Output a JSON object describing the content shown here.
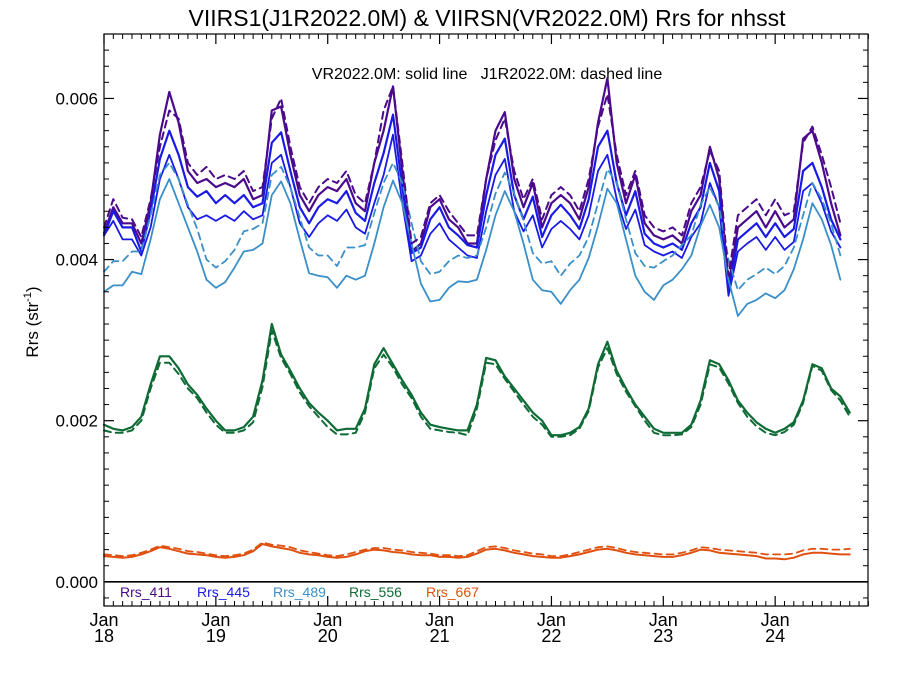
{
  "chart_data": {
    "type": "line",
    "title": "VIIRS1(J1R2022.0M) & VIIRSN(VR2022.0M)  Rrs for nhsst",
    "subtitle": "VR2022.0M: solid line   J1R2022.0M: dashed line",
    "ylabel": "Rrs (str",
    "ylabel_sup": "-1",
    "ylabel_close": ")",
    "xlim": [
      2018.0,
      2024.83
    ],
    "ylim": [
      -0.0003,
      0.0068
    ],
    "yticks": [
      "0.000",
      "0.002",
      "0.004",
      "0.006"
    ],
    "ytick_values": [
      0.0,
      0.002,
      0.004,
      0.006
    ],
    "xticks": [
      {
        "top": "Jan",
        "bottom": "18",
        "x": 2018.0
      },
      {
        "top": "Jan",
        "bottom": "19",
        "x": 2019.0
      },
      {
        "top": "Jan",
        "bottom": "20",
        "x": 2020.0
      },
      {
        "top": "Jan",
        "bottom": "21",
        "x": 2021.0
      },
      {
        "top": "Jan",
        "bottom": "22",
        "x": 2022.0
      },
      {
        "top": "Jan",
        "bottom": "23",
        "x": 2023.0
      },
      {
        "top": "Jan",
        "bottom": "24",
        "x": 2024.0
      }
    ],
    "x_step": 0.0833333,
    "legend": [
      {
        "name": "Rrs_411",
        "color": "#4b0a8c"
      },
      {
        "name": "Rrs_445",
        "color": "#1a1ae6"
      },
      {
        "name": "Rrs_489",
        "color": "#3a8fc8"
      },
      {
        "name": "Rrs_556",
        "color": "#0f6b35"
      },
      {
        "name": "Rrs_667",
        "color": "#e0500f"
      }
    ],
    "series": [
      {
        "name": "Rrs_411",
        "style": "solid",
        "color": "#4b0a8c",
        "width": 2.2,
        "values": [
          0.00433,
          0.00465,
          0.00445,
          0.00445,
          0.0042,
          0.0047,
          0.00555,
          0.00608,
          0.0057,
          0.0051,
          0.00495,
          0.005,
          0.0049,
          0.00495,
          0.0049,
          0.005,
          0.00475,
          0.0048,
          0.00585,
          0.0059,
          0.0053,
          0.0048,
          0.0046,
          0.0048,
          0.0049,
          0.00485,
          0.005,
          0.0047,
          0.0046,
          0.0052,
          0.0056,
          0.00615,
          0.0051,
          0.0041,
          0.0042,
          0.00465,
          0.00475,
          0.0045,
          0.0044,
          0.0042,
          0.0042,
          0.005,
          0.0056,
          0.00583,
          0.005,
          0.00465,
          0.00495,
          0.0044,
          0.0047,
          0.0048,
          0.0047,
          0.0045,
          0.0049,
          0.0057,
          0.00625,
          0.0052,
          0.0047,
          0.00505,
          0.00445,
          0.0043,
          0.00425,
          0.0043,
          0.0042,
          0.0046,
          0.0048,
          0.0054,
          0.005,
          0.00368,
          0.0044,
          0.0045,
          0.0046,
          0.0044,
          0.0046,
          0.0044,
          0.0045,
          0.0055,
          0.0056,
          0.0052,
          0.0047,
          0.0043
        ]
      },
      {
        "name": "Rrs_445",
        "style": "solid",
        "color": "#1a1ae6",
        "width": 2.2,
        "values": [
          0.0043,
          0.0046,
          0.0044,
          0.0044,
          0.0041,
          0.0046,
          0.00525,
          0.0056,
          0.0053,
          0.0049,
          0.00478,
          0.00485,
          0.0047,
          0.0048,
          0.0047,
          0.0048,
          0.00465,
          0.0047,
          0.00545,
          0.00558,
          0.0051,
          0.00465,
          0.00445,
          0.00465,
          0.00475,
          0.0047,
          0.00485,
          0.00458,
          0.00448,
          0.00495,
          0.00532,
          0.0058,
          0.0049,
          0.00408,
          0.00415,
          0.0045,
          0.00465,
          0.0044,
          0.0043,
          0.00418,
          0.00415,
          0.0048,
          0.0053,
          0.0055,
          0.0048,
          0.0045,
          0.00478,
          0.00428,
          0.00455,
          0.00468,
          0.00455,
          0.00438,
          0.00475,
          0.0054,
          0.0056,
          0.00495,
          0.00455,
          0.00485,
          0.00432,
          0.0042,
          0.00415,
          0.0042,
          0.00412,
          0.00445,
          0.00465,
          0.0052,
          0.00485,
          0.0036,
          0.00425,
          0.00435,
          0.00445,
          0.00428,
          0.00445,
          0.00428,
          0.00438,
          0.0051,
          0.0052,
          0.0049,
          0.0045,
          0.00425
        ]
      },
      {
        "name": "Rrs_445",
        "style": "solid",
        "color": "#1a1ae6",
        "width": 1.8,
        "values": [
          0.0043,
          0.00448,
          0.00425,
          0.00425,
          0.00405,
          0.0044,
          0.005,
          0.0053,
          0.005,
          0.00465,
          0.0045,
          0.00455,
          0.00448,
          0.00455,
          0.00448,
          0.0046,
          0.0045,
          0.00455,
          0.0052,
          0.0053,
          0.0049,
          0.00445,
          0.00428,
          0.00445,
          0.00455,
          0.00448,
          0.00462,
          0.0044,
          0.00432,
          0.0047,
          0.00505,
          0.00555,
          0.0047,
          0.00398,
          0.00405,
          0.00432,
          0.00445,
          0.00425,
          0.00415,
          0.00405,
          0.00402,
          0.0046,
          0.00505,
          0.00525,
          0.0046,
          0.00435,
          0.00455,
          0.00415,
          0.00438,
          0.00448,
          0.00438,
          0.00425,
          0.00455,
          0.0051,
          0.0053,
          0.00475,
          0.00438,
          0.00462,
          0.00418,
          0.0041,
          0.00405,
          0.0041,
          0.00402,
          0.00428,
          0.00445,
          0.00495,
          0.00465,
          0.00355,
          0.0041,
          0.0042,
          0.00428,
          0.00412,
          0.00428,
          0.00412,
          0.00422,
          0.00485,
          0.00495,
          0.0047,
          0.00435,
          0.00415
        ]
      },
      {
        "name": "Rrs_489",
        "style": "solid",
        "color": "#3a8fc8",
        "width": 1.8,
        "values": [
          0.0036,
          0.00368,
          0.00368,
          0.00385,
          0.00382,
          0.00425,
          0.00475,
          0.005,
          0.0047,
          0.0044,
          0.0041,
          0.00375,
          0.00365,
          0.00372,
          0.0039,
          0.0041,
          0.00412,
          0.0042,
          0.0048,
          0.00497,
          0.0047,
          0.00425,
          0.00383,
          0.0038,
          0.00378,
          0.00365,
          0.0038,
          0.00375,
          0.0038,
          0.0042,
          0.00465,
          0.00498,
          0.0047,
          0.0042,
          0.0037,
          0.00348,
          0.0035,
          0.00365,
          0.00373,
          0.00372,
          0.00375,
          0.00412,
          0.00455,
          0.00485,
          0.0046,
          0.0042,
          0.00375,
          0.00362,
          0.0036,
          0.00345,
          0.00362,
          0.00375,
          0.00402,
          0.00442,
          0.00488,
          0.0047,
          0.00425,
          0.0038,
          0.0036,
          0.0035,
          0.00368,
          0.00375,
          0.00388,
          0.00405,
          0.00442,
          0.00468,
          0.0044,
          0.00375,
          0.0033,
          0.00345,
          0.0035,
          0.00358,
          0.00352,
          0.00362,
          0.00388,
          0.00425,
          0.0047,
          0.0045,
          0.00418,
          0.00375
        ]
      },
      {
        "name": "Rrs_489",
        "style": "dashed",
        "color": "#3a8fc8",
        "width": 1.8,
        "values": [
          0.00385,
          0.00398,
          0.00398,
          0.0041,
          0.0041,
          0.00455,
          0.00505,
          0.0052,
          0.005,
          0.00468,
          0.00438,
          0.004,
          0.0039,
          0.00398,
          0.00412,
          0.00435,
          0.00438,
          0.00445,
          0.00505,
          0.00515,
          0.0049,
          0.00452,
          0.00415,
          0.00405,
          0.00405,
          0.00392,
          0.00415,
          0.00415,
          0.00418,
          0.00458,
          0.00495,
          0.0052,
          0.00495,
          0.00445,
          0.00398,
          0.00382,
          0.00385,
          0.00398,
          0.00405,
          0.00402,
          0.00405,
          0.0044,
          0.00482,
          0.00508,
          0.00482,
          0.00448,
          0.00408,
          0.00395,
          0.00398,
          0.0038,
          0.00395,
          0.00405,
          0.00428,
          0.0047,
          0.00512,
          0.00495,
          0.0045,
          0.00408,
          0.00392,
          0.0039,
          0.00398,
          0.00405,
          0.00418,
          0.0043,
          0.00468,
          0.0049,
          0.00465,
          0.004,
          0.00362,
          0.00375,
          0.00382,
          0.0039,
          0.00382,
          0.00392,
          0.00415,
          0.00455,
          0.00495,
          0.00475,
          0.00445,
          0.00405
        ]
      },
      {
        "name": "Rrs_411",
        "style": "dashed",
        "color": "#4b0a8c",
        "width": 2.0,
        "values": [
          0.0044,
          0.00475,
          0.00452,
          0.0045,
          0.00428,
          0.00475,
          0.0054,
          0.00585,
          0.00575,
          0.0052,
          0.00505,
          0.00515,
          0.005,
          0.00505,
          0.005,
          0.0051,
          0.00485,
          0.0049,
          0.00575,
          0.006,
          0.0054,
          0.0049,
          0.0047,
          0.0049,
          0.005,
          0.00495,
          0.0051,
          0.0048,
          0.0047,
          0.0052,
          0.00585,
          0.00615,
          0.0052,
          0.0042,
          0.00428,
          0.0047,
          0.0048,
          0.0046,
          0.00445,
          0.0043,
          0.0043,
          0.005,
          0.00548,
          0.00575,
          0.0051,
          0.00475,
          0.005,
          0.0045,
          0.0048,
          0.0049,
          0.0048,
          0.0046,
          0.005,
          0.00565,
          0.00605,
          0.0053,
          0.0048,
          0.0051,
          0.00455,
          0.0044,
          0.00435,
          0.0044,
          0.0043,
          0.0047,
          0.0049,
          0.00535,
          0.0051,
          0.0038,
          0.00455,
          0.00465,
          0.00475,
          0.00455,
          0.00475,
          0.00455,
          0.0046,
          0.00545,
          0.00565,
          0.0053,
          0.0049,
          0.00445
        ]
      },
      {
        "name": "Rrs_556",
        "style": "solid",
        "color": "#0f6b35",
        "width": 2.2,
        "values": [
          0.00195,
          0.0019,
          0.00188,
          0.00192,
          0.00205,
          0.00245,
          0.0028,
          0.0028,
          0.00265,
          0.00245,
          0.00232,
          0.00215,
          0.002,
          0.00188,
          0.00188,
          0.00192,
          0.00205,
          0.0025,
          0.0032,
          0.00282,
          0.00262,
          0.0024,
          0.00222,
          0.0021,
          0.002,
          0.00188,
          0.0019,
          0.0019,
          0.00215,
          0.0027,
          0.0029,
          0.0027,
          0.0025,
          0.00232,
          0.0021,
          0.00195,
          0.00192,
          0.0019,
          0.00188,
          0.00188,
          0.0022,
          0.00278,
          0.00275,
          0.00255,
          0.0024,
          0.00225,
          0.0021,
          0.002,
          0.00182,
          0.00182,
          0.00185,
          0.00192,
          0.00215,
          0.0027,
          0.00298,
          0.00262,
          0.0024,
          0.0022,
          0.00205,
          0.0019,
          0.00185,
          0.00185,
          0.00185,
          0.00195,
          0.00225,
          0.00275,
          0.0027,
          0.0025,
          0.00225,
          0.0021,
          0.00198,
          0.0019,
          0.00185,
          0.0019,
          0.00198,
          0.00225,
          0.0027,
          0.00265,
          0.0024,
          0.0023,
          0.0021
        ]
      },
      {
        "name": "Rrs_556",
        "style": "dashed",
        "color": "#0f6b35",
        "width": 2.0,
        "values": [
          0.00188,
          0.00185,
          0.00185,
          0.00188,
          0.002,
          0.0024,
          0.00272,
          0.00272,
          0.00258,
          0.0024,
          0.00228,
          0.0021,
          0.00195,
          0.00185,
          0.00185,
          0.00188,
          0.00198,
          0.00242,
          0.00312,
          0.00278,
          0.00258,
          0.00235,
          0.00218,
          0.00205,
          0.00192,
          0.00183,
          0.00183,
          0.00185,
          0.0021,
          0.00265,
          0.00282,
          0.00266,
          0.00245,
          0.00228,
          0.00205,
          0.0019,
          0.00188,
          0.00186,
          0.00185,
          0.00182,
          0.00215,
          0.00272,
          0.0027,
          0.00252,
          0.00236,
          0.0022,
          0.00205,
          0.00195,
          0.0018,
          0.0018,
          0.00182,
          0.0019,
          0.00212,
          0.00266,
          0.0029,
          0.00258,
          0.00236,
          0.00218,
          0.002,
          0.00185,
          0.00182,
          0.00182,
          0.00183,
          0.00192,
          0.0022,
          0.0027,
          0.00266,
          0.00246,
          0.00222,
          0.00205,
          0.00193,
          0.00185,
          0.00182,
          0.00186,
          0.00195,
          0.00222,
          0.00268,
          0.00262,
          0.00238,
          0.00225,
          0.00205
        ]
      },
      {
        "name": "Rrs_667",
        "style": "solid",
        "color": "#e0500f",
        "width": 2.0,
        "values": [
          0.00032,
          0.00031,
          0.0003,
          0.00031,
          0.00034,
          0.00038,
          0.00043,
          0.00041,
          0.00038,
          0.00035,
          0.00034,
          0.00033,
          0.00031,
          0.0003,
          0.00031,
          0.00033,
          0.00038,
          0.00047,
          0.00044,
          0.00042,
          0.0004,
          0.00036,
          0.00034,
          0.00033,
          0.00031,
          0.0003,
          0.00031,
          0.00034,
          0.00038,
          0.0004,
          0.00039,
          0.00037,
          0.00036,
          0.00034,
          0.00033,
          0.00033,
          0.00031,
          0.00031,
          0.0003,
          0.00031,
          0.00035,
          0.0004,
          0.00041,
          0.00039,
          0.00036,
          0.00034,
          0.00032,
          0.00031,
          0.0003,
          0.0003,
          0.00032,
          0.00034,
          0.00037,
          0.0004,
          0.00041,
          0.00039,
          0.00036,
          0.00034,
          0.00033,
          0.00032,
          0.00031,
          0.00031,
          0.00033,
          0.00036,
          0.0004,
          0.00039,
          0.00036,
          0.00035,
          0.00034,
          0.00033,
          0.00032,
          0.00029,
          0.00029,
          0.00028,
          0.0003,
          0.00034,
          0.00036,
          0.00036,
          0.00035,
          0.00034,
          0.00034
        ]
      },
      {
        "name": "Rrs_667",
        "style": "dashed",
        "color": "#e0500f",
        "width": 1.8,
        "values": [
          0.00034,
          0.00033,
          0.00032,
          0.00033,
          0.00036,
          0.0004,
          0.00045,
          0.00043,
          0.00041,
          0.00038,
          0.00037,
          0.00035,
          0.00033,
          0.00032,
          0.00033,
          0.00035,
          0.0004,
          0.00049,
          0.00046,
          0.00045,
          0.00043,
          0.00039,
          0.00037,
          0.00035,
          0.00033,
          0.00032,
          0.00034,
          0.00037,
          0.0004,
          0.00042,
          0.00042,
          0.0004,
          0.00039,
          0.00037,
          0.00036,
          0.00035,
          0.00033,
          0.00033,
          0.00032,
          0.00033,
          0.00038,
          0.00043,
          0.00044,
          0.00042,
          0.00039,
          0.00037,
          0.00035,
          0.00034,
          0.00032,
          0.00032,
          0.00034,
          0.00037,
          0.0004,
          0.00043,
          0.00044,
          0.00042,
          0.00039,
          0.00037,
          0.00036,
          0.00035,
          0.00034,
          0.00034,
          0.00036,
          0.00039,
          0.00043,
          0.00042,
          0.0004,
          0.00039,
          0.00038,
          0.00037,
          0.00036,
          0.00034,
          0.00034,
          0.00034,
          0.00035,
          0.00039,
          0.00041,
          0.00041,
          0.0004,
          0.0004,
          0.00041
        ]
      }
    ]
  }
}
